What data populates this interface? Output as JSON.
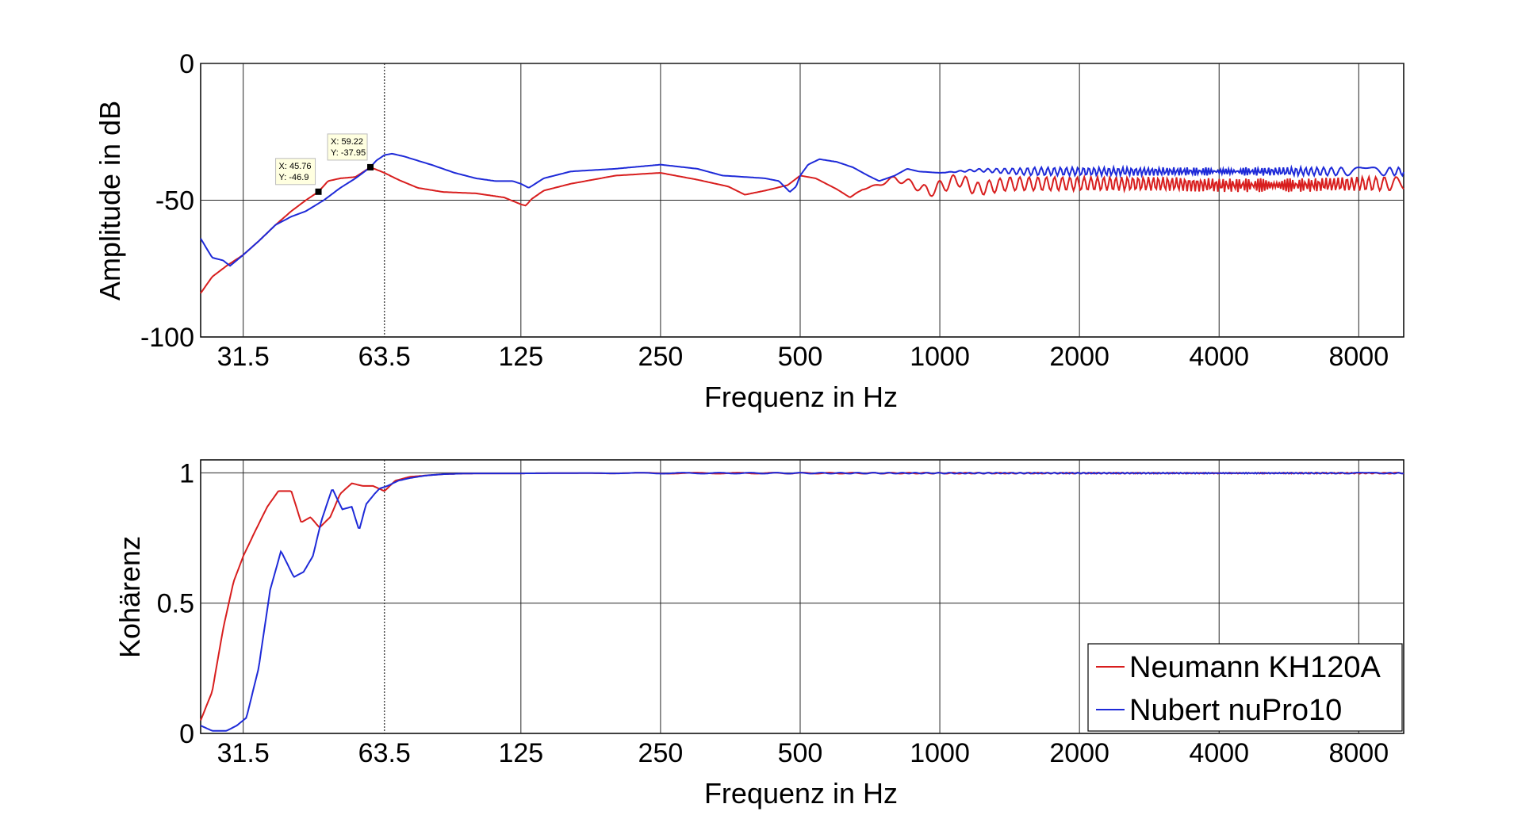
{
  "colors": {
    "red": "#d81e1e",
    "blue": "#1e2ad8",
    "grid": "#262626",
    "background": "#ffffff"
  },
  "chart_data": [
    {
      "type": "line",
      "id": "amplitude",
      "xlabel": "Frequenz in Hz",
      "ylabel": "Amplitude in dB",
      "xscale": "log",
      "xlim": [
        25.5,
        10000
      ],
      "ylim": [
        -100,
        0
      ],
      "xticks": [
        31.5,
        63.5,
        125,
        250,
        500,
        1000,
        2000,
        4000,
        8000
      ],
      "xtick_labels": [
        "31.5",
        "63.5",
        "125",
        "250",
        "500",
        "1000",
        "2000",
        "4000",
        "8000"
      ],
      "yticks": [
        -100,
        -50,
        0
      ],
      "ytick_labels": [
        "-100",
        "-50",
        "0"
      ],
      "grid": true,
      "series": [
        {
          "name": "Neumann KH120A",
          "color": "#d81e1e",
          "ripple": 2.5,
          "ripple_from": 650,
          "x": [
            25.5,
            27,
            29,
            31.5,
            34,
            37,
            40,
            43,
            45.76,
            48,
            51,
            55,
            59.22,
            63.5,
            68,
            75,
            85,
            100,
            115,
            125,
            128,
            132,
            140,
            160,
            200,
            250,
            300,
            350,
            380,
            420,
            470,
            500,
            540,
            600,
            640,
            680,
            720,
            800,
            870,
            950,
            1000,
            1100,
            1200,
            1400,
            1700,
            2000,
            2500,
            3000,
            4000,
            5000,
            6000,
            8000,
            10000
          ],
          "y": [
            -84,
            -78,
            -74,
            -70,
            -65,
            -59,
            -54,
            -50,
            -46.9,
            -43,
            -42,
            -41.5,
            -37.95,
            -40,
            -42.5,
            -45.5,
            -47,
            -47.5,
            -49,
            -51.5,
            -52,
            -49.5,
            -46.5,
            -44,
            -41,
            -40,
            -42.5,
            -45,
            -48,
            -46.5,
            -44.5,
            -41,
            -42,
            -46,
            -49,
            -46,
            -45,
            -42,
            -44,
            -47,
            -45,
            -42.5,
            -46,
            -44,
            -44,
            -44,
            -44,
            -44,
            -44.5,
            -44.5,
            -44.5,
            -44,
            -44
          ]
        },
        {
          "name": "Nubert nuPro10",
          "color": "#1e2ad8",
          "ripple": 1.5,
          "ripple_from": 1000,
          "x": [
            25.5,
            27,
            28.5,
            29.5,
            31.5,
            34,
            37,
            40,
            43,
            47,
            51,
            55,
            59.22,
            61,
            63.5,
            66,
            70,
            80,
            90,
            100,
            110,
            120,
            125,
            130,
            140,
            160,
            200,
            250,
            300,
            340,
            380,
            420,
            450,
            475,
            490,
            500,
            520,
            550,
            600,
            650,
            700,
            740,
            800,
            850,
            900,
            1000,
            1200,
            1500,
            2000,
            3000,
            4000,
            6000,
            8000,
            10000
          ],
          "y": [
            -64,
            -71,
            -72,
            -74,
            -70,
            -65,
            -59,
            -56,
            -54,
            -50,
            -45.5,
            -42,
            -37.95,
            -35.5,
            -33.5,
            -33,
            -34,
            -37,
            -40,
            -42,
            -43,
            -43,
            -44,
            -45.5,
            -42,
            -39.5,
            -38.5,
            -37,
            -38.5,
            -41,
            -41.5,
            -42,
            -43,
            -47,
            -45,
            -41,
            -37,
            -35,
            -36,
            -38,
            -41,
            -43,
            -41,
            -38.5,
            -39.5,
            -40,
            -39,
            -39.5,
            -39.5,
            -39.5,
            -39.5,
            -39.5,
            -39.5,
            -39.5
          ]
        }
      ],
      "datatips": [
        {
          "series": "Neumann KH120A",
          "x": 45.76,
          "y": -46.9,
          "x_label": "X: 45.76",
          "y_label": "Y: -46.9"
        },
        {
          "series": "Nubert nuPro10",
          "x": 59.22,
          "y": -37.95,
          "x_label": "X: 59.22",
          "y_label": "Y: -37.95"
        }
      ]
    },
    {
      "type": "line",
      "id": "coherence",
      "xlabel": "Frequenz in Hz",
      "ylabel": "Kohärenz",
      "xscale": "log",
      "xlim": [
        25.5,
        10000
      ],
      "ylim": [
        0,
        1.05
      ],
      "xticks": [
        31.5,
        63.5,
        125,
        250,
        500,
        1000,
        2000,
        4000,
        8000
      ],
      "xtick_labels": [
        "31.5",
        "63.5",
        "125",
        "250",
        "500",
        "1000",
        "2000",
        "4000",
        "8000"
      ],
      "yticks": [
        0,
        0.5,
        1
      ],
      "ytick_labels": [
        "0",
        "0.5",
        "1"
      ],
      "grid": true,
      "legend_position": "bottom-right",
      "series": [
        {
          "name": "Neumann KH120A",
          "color": "#d81e1e",
          "ripple": 0.002,
          "ripple_from": 150,
          "x": [
            25.5,
            27,
            28.5,
            30,
            31.5,
            33.5,
            35.5,
            37.5,
            40,
            42,
            44,
            46,
            48.5,
            51,
            54,
            57,
            60,
            63.5,
            67,
            72,
            78,
            85,
            92,
            100,
            125,
            150,
            200,
            250,
            300,
            400,
            500,
            1000,
            2000,
            4000,
            8000,
            10000
          ],
          "y": [
            0.05,
            0.16,
            0.4,
            0.58,
            0.68,
            0.78,
            0.87,
            0.93,
            0.93,
            0.81,
            0.83,
            0.79,
            0.83,
            0.92,
            0.96,
            0.95,
            0.95,
            0.93,
            0.97,
            0.985,
            0.99,
            0.995,
            0.997,
            0.998,
            0.998,
            0.999,
            0.999,
            0.999,
            0.999,
            0.999,
            0.999,
            0.999,
            0.999,
            0.999,
            0.999,
            0.999
          ]
        },
        {
          "name": "Nubert nuPro10",
          "color": "#1e2ad8",
          "ripple": 0.002,
          "ripple_from": 150,
          "x": [
            25.5,
            27,
            29,
            30.5,
            32,
            34,
            36,
            38,
            40.5,
            42.5,
            44.5,
            46.5,
            49,
            51.5,
            54,
            56,
            58,
            60.5,
            62,
            64.5,
            68,
            72,
            78,
            85,
            92,
            100,
            125,
            150,
            200,
            250,
            500,
            1000,
            2000,
            4000,
            8000,
            10000
          ],
          "y": [
            0.03,
            0.01,
            0.01,
            0.03,
            0.06,
            0.25,
            0.55,
            0.7,
            0.6,
            0.62,
            0.68,
            0.82,
            0.94,
            0.86,
            0.87,
            0.78,
            0.88,
            0.92,
            0.94,
            0.95,
            0.97,
            0.98,
            0.99,
            0.995,
            0.997,
            0.998,
            0.998,
            0.999,
            0.999,
            0.999,
            0.999,
            0.999,
            0.999,
            0.999,
            0.999,
            0.999
          ]
        }
      ]
    }
  ]
}
